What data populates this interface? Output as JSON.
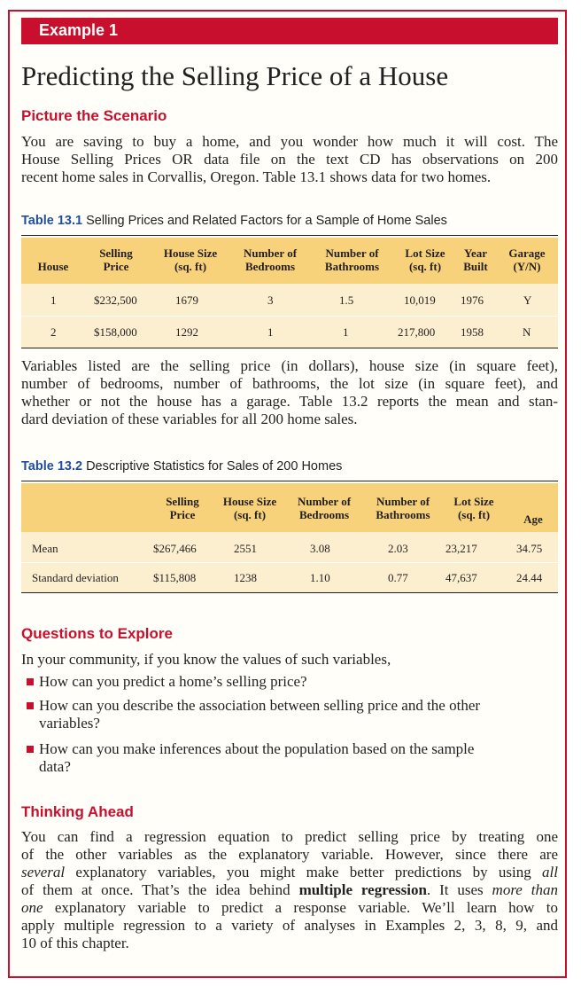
{
  "example_label": "Example 1",
  "title": "Predicting the Selling Price of a House",
  "scenario": {
    "heading": "Picture the Scenario",
    "lines": [
      "You are saving to buy a home, and you wonder how much it will cost. The",
      "House Selling Prices OR data file on the text CD has observations on 200",
      "recent home sales in Corvallis, Oregon. Table 13.1 shows data for two homes."
    ]
  },
  "table1": {
    "label": "Table 13.1",
    "caption": "Selling Prices and Related Factors for a Sample of Home Sales",
    "headers": [
      [
        "House"
      ],
      [
        "Selling",
        "Price"
      ],
      [
        "House Size",
        "(sq. ft)"
      ],
      [
        "Number of",
        "Bedrooms"
      ],
      [
        "Number of",
        "Bathrooms"
      ],
      [
        "Lot Size",
        "(sq. ft)"
      ],
      [
        "Year",
        "Built"
      ],
      [
        "Garage",
        "(Y/N)"
      ]
    ],
    "rows": [
      [
        "1",
        "$232,500",
        "1679",
        "3",
        "1.5",
        "10,019",
        "1976",
        "Y"
      ],
      [
        "2",
        "$158,000",
        "1292",
        "1",
        "1",
        "217,800",
        "1958",
        "N"
      ]
    ]
  },
  "variables_para": [
    "Variables listed are the selling price (in dollars), house size (in square feet),",
    "number of bedrooms, number of bathrooms, the lot size (in square feet), and",
    "whether or not the house has a garage. Table 13.2 reports the mean and stan-",
    "dard deviation of these variables for all 200 home sales."
  ],
  "table2": {
    "label": "Table 13.2",
    "caption": "Descriptive Statistics for Sales of 200 Homes",
    "headers": [
      [
        "Selling",
        "Price"
      ],
      [
        "House Size",
        "(sq. ft)"
      ],
      [
        "Number of",
        "Bedrooms"
      ],
      [
        "Number of",
        "Bathrooms"
      ],
      [
        "Lot Size",
        "(sq. ft)"
      ],
      [
        "Age"
      ]
    ],
    "rows": [
      {
        "label": "Mean",
        "values": [
          "$267,466",
          "2551",
          "3.08",
          "2.03",
          "23,217",
          "34.75"
        ]
      },
      {
        "label": "Standard deviation",
        "values": [
          "$115,808",
          "1238",
          "1.10",
          "0.77",
          "47,637",
          "24.44"
        ]
      }
    ]
  },
  "questions": {
    "heading": "Questions to Explore",
    "intro": "In your community, if you know the values of such variables,",
    "bullets": [
      [
        "How can you predict a home’s selling price?"
      ],
      [
        "How can you describe the association between selling price and the other",
        "variables?"
      ],
      [
        "How can you make inferences about the population based on the sample",
        "data?"
      ]
    ]
  },
  "thinking": {
    "heading": "Thinking Ahead",
    "l1": "You can find a regression equation to predict selling price by treating one",
    "l2": "of the other variables as the explanatory variable. However, since there are",
    "l3a": "several",
    "l3b": " explanatory variables, you might make better predictions by using ",
    "l3c": "all",
    "l4a": "of them at once. That’s the idea behind ",
    "l4b": "multiple regression",
    "l4c": ". It uses ",
    "l4d": "more than",
    "l5a": "one",
    "l5b": " explanatory variable to predict a response variable. We’ll learn how to",
    "l6": "apply multiple regression to a variety of analyses in Examples 2, 3, 8, 9, and",
    "l7": "10 of this chapter."
  }
}
